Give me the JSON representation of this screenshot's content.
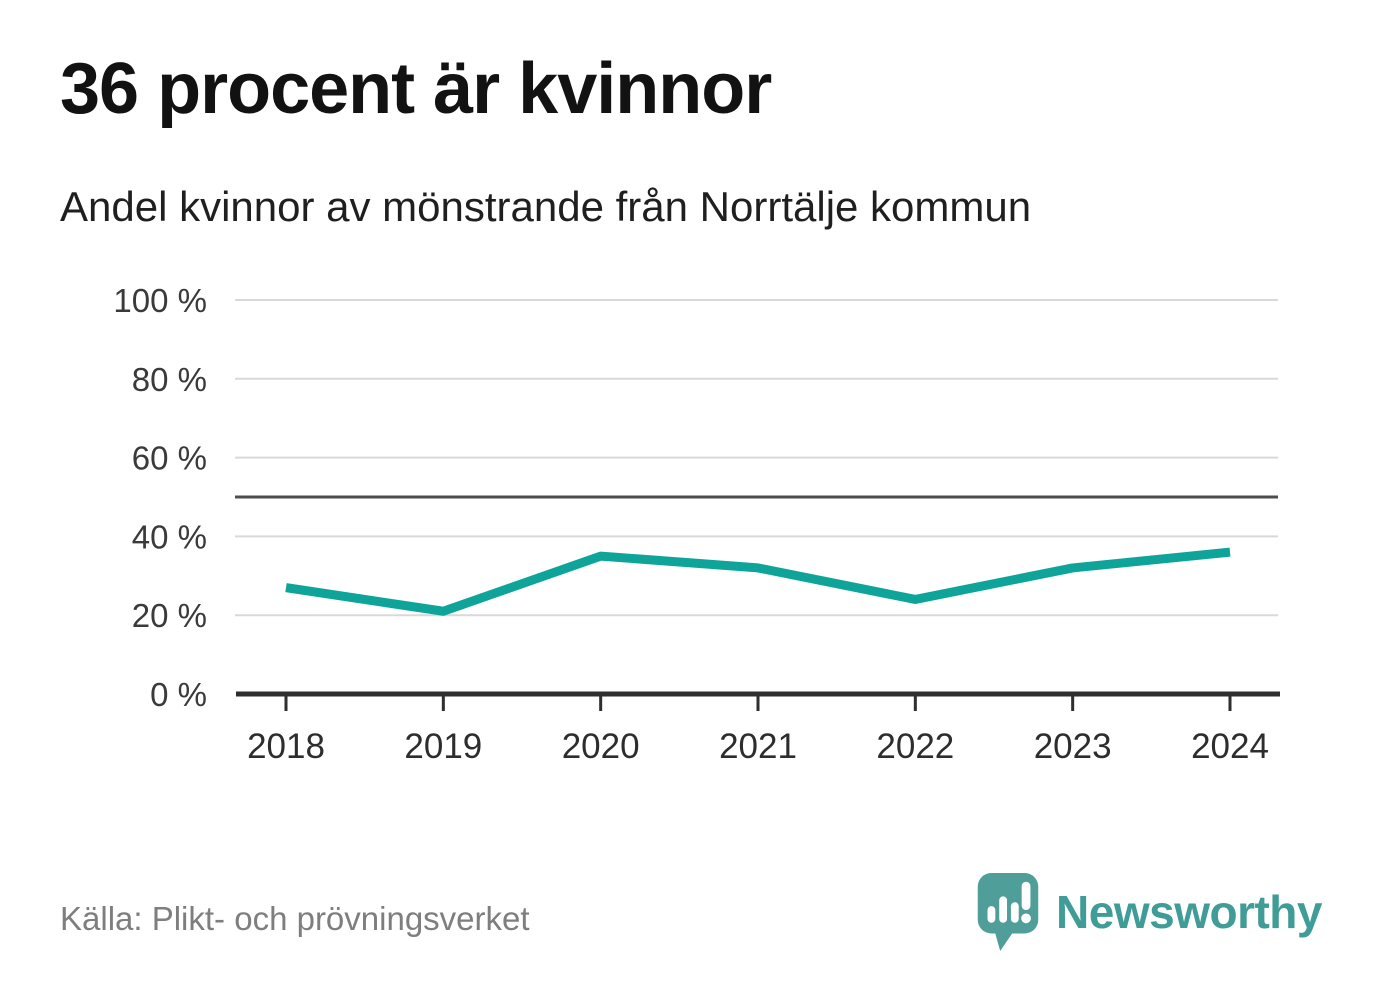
{
  "header": {
    "title": "36 procent är kvinnor",
    "subtitle": "Andel kvinnor av mönstrande från Norrtälje kommun"
  },
  "chart_data": {
    "type": "line",
    "title": "36 procent är kvinnor",
    "subtitle": "Andel kvinnor av mönstrande från Norrtälje kommun",
    "categories": [
      "2018",
      "2019",
      "2020",
      "2021",
      "2022",
      "2023",
      "2024"
    ],
    "series": [
      {
        "name": "Andel kvinnor av mönstrande",
        "values": [
          27,
          21,
          35,
          32,
          24,
          32,
          36
        ]
      }
    ],
    "unit": "%",
    "xlabel": "",
    "ylabel": "",
    "ylim": [
      0,
      100
    ],
    "yticks": [
      0,
      20,
      40,
      60,
      80,
      100
    ],
    "ytick_format": "{v} %",
    "reference_line": 50,
    "grid": true,
    "legend": "none",
    "line_color": "#0fa49a"
  },
  "footer": {
    "source": "Källa: Plikt- och prövningsverket",
    "brand": "Newsworthy"
  },
  "colors": {
    "line": "#0fa49a",
    "reference_line": "#4d4d4d",
    "gridline": "#d9d9d9",
    "axis": "#2e2e2e",
    "brand_teal": "#3f9c96",
    "source_gray": "#7e7e7e"
  }
}
